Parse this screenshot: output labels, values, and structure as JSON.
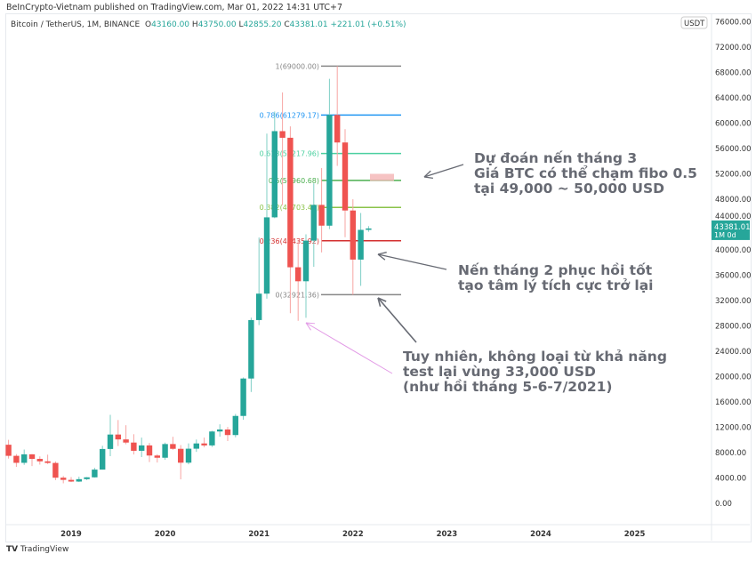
{
  "published": "BeInCrypto-Vietnam published on TradingView.com, Mar 01, 2022 14:31 UTC+7",
  "symbol": "Bitcoin / TetherUS, 1M, BINANCE",
  "ohlc": {
    "o_label": "O",
    "o": "43160.00",
    "h_label": "H",
    "h": "43750.00",
    "l_label": "L",
    "l": "42855.20",
    "c_label": "C",
    "c": "43381.01",
    "change": "+221.01 (+0.51%)"
  },
  "currency": "USDT",
  "last_price": {
    "price": "43381.01",
    "countdown": "1M 0d"
  },
  "footer": "TradingView",
  "colors": {
    "up": "#26a69a",
    "down": "#ef5350"
  },
  "chart_data": {
    "type": "candlestick",
    "ylim": [
      0,
      76000
    ],
    "y_ticks": [
      "0.00",
      "4000.00",
      "8000.00",
      "12000.00",
      "16000.00",
      "20000.00",
      "24000.00",
      "28000.00",
      "32000.00",
      "36000.00",
      "40000.00",
      "44000.00",
      "48000.00",
      "52000.00",
      "56000.00",
      "60000.00",
      "64000.00",
      "68000.00",
      "72000.00",
      "76000.00"
    ],
    "x_ticks": [
      "2019",
      "2020",
      "2021",
      "2022",
      "2023",
      "2024",
      "2025"
    ],
    "start": "2018-05",
    "candles": [
      [
        9245,
        10020,
        7058,
        7494
      ],
      [
        7494,
        7764,
        5750,
        6391
      ],
      [
        6391,
        8488,
        6070,
        7730
      ],
      [
        7735,
        7750,
        5880,
        7011
      ],
      [
        7011,
        7410,
        6111,
        6626
      ],
      [
        6626,
        7680,
        6205,
        6371
      ],
      [
        6370,
        6615,
        3652,
        4041
      ],
      [
        4041,
        4313,
        3156,
        3702
      ],
      [
        3701,
        4143,
        3349,
        3434
      ],
      [
        3434,
        4198,
        3374,
        3813
      ],
      [
        3814,
        4140,
        3670,
        4103
      ],
      [
        4102,
        5600,
        4067,
        5320
      ],
      [
        5320,
        9074,
        5320,
        8574
      ],
      [
        8574,
        13970,
        7444,
        10854
      ],
      [
        10854,
        13147,
        9040,
        10085
      ],
      [
        10085,
        12325,
        9320,
        9588
      ],
      [
        9588,
        10905,
        7710,
        8289
      ],
      [
        8289,
        10370,
        7300,
        9140
      ],
      [
        9140,
        9530,
        6515,
        7541
      ],
      [
        7541,
        7750,
        6435,
        7195
      ],
      [
        7195,
        9578,
        6871,
        9352
      ],
      [
        9352,
        10500,
        8450,
        8600
      ],
      [
        8600,
        9188,
        3782,
        6410
      ],
      [
        6412,
        9460,
        6150,
        8620
      ],
      [
        8620,
        10067,
        8117,
        9448
      ],
      [
        9448,
        10380,
        8833,
        9138
      ],
      [
        9138,
        11444,
        8893,
        11335
      ],
      [
        11335,
        12468,
        10518,
        11650
      ],
      [
        11650,
        12050,
        9825,
        10776
      ],
      [
        10776,
        14100,
        10416,
        13791
      ],
      [
        13791,
        19863,
        13195,
        19695
      ],
      [
        19695,
        29300,
        17572,
        28923
      ],
      [
        28923,
        41950,
        28130,
        33092
      ],
      [
        33092,
        58352,
        32296,
        45135
      ],
      [
        45134,
        61844,
        45000,
        58740
      ],
      [
        58739,
        64854,
        47044,
        57694
      ],
      [
        57697,
        59500,
        30000,
        37253
      ],
      [
        37254,
        41330,
        28805,
        35045
      ],
      [
        35046,
        42448,
        29278,
        41461
      ],
      [
        41461,
        50500,
        37332,
        47100
      ],
      [
        47100,
        52920,
        39600,
        43824
      ],
      [
        43820,
        67000,
        43283,
        61299
      ],
      [
        61300,
        69000,
        53256,
        56950
      ],
      [
        56950,
        59053,
        42000,
        46216
      ],
      [
        46216,
        47990,
        32917,
        38466
      ],
      [
        38466,
        45821,
        34322,
        43160
      ],
      [
        43160,
        43750,
        42855,
        43381
      ]
    ]
  },
  "fib": [
    {
      "label": "1(69000.00)",
      "price": 69000,
      "color": "#888888"
    },
    {
      "label": "0.786(61279.17)",
      "price": 61279.17,
      "color": "#2196f3"
    },
    {
      "label": "0.618(55217.96)",
      "price": 55217.96,
      "color": "#4cd0a0"
    },
    {
      "label": "0.5(50960.68)",
      "price": 50960.68,
      "color": "#4caf50"
    },
    {
      "label": "0.382(46703.40)",
      "price": 46703.4,
      "color": "#8bc34a"
    },
    {
      "label": "0.236(41435.92)",
      "price": 41435.92,
      "color": "#d32f2f"
    },
    {
      "label": "0(32921.36)",
      "price": 32921.36,
      "color": "#888888"
    }
  ],
  "notes": {
    "n1": [
      "Dự đoán nến tháng 3",
      "Giá BTC có thể chạm fibo 0.5",
      "tại 49,000 ~ 50,000 USD"
    ],
    "n2": [
      "Nến tháng 2 phục hồi tốt",
      "tạo tâm lý tích cực trở lại"
    ],
    "n3": [
      "Tuy nhiên, không loại từ khả năng",
      "test lại vùng 33,000 USD",
      "(như hồi tháng 5-6-7/2021)"
    ]
  }
}
